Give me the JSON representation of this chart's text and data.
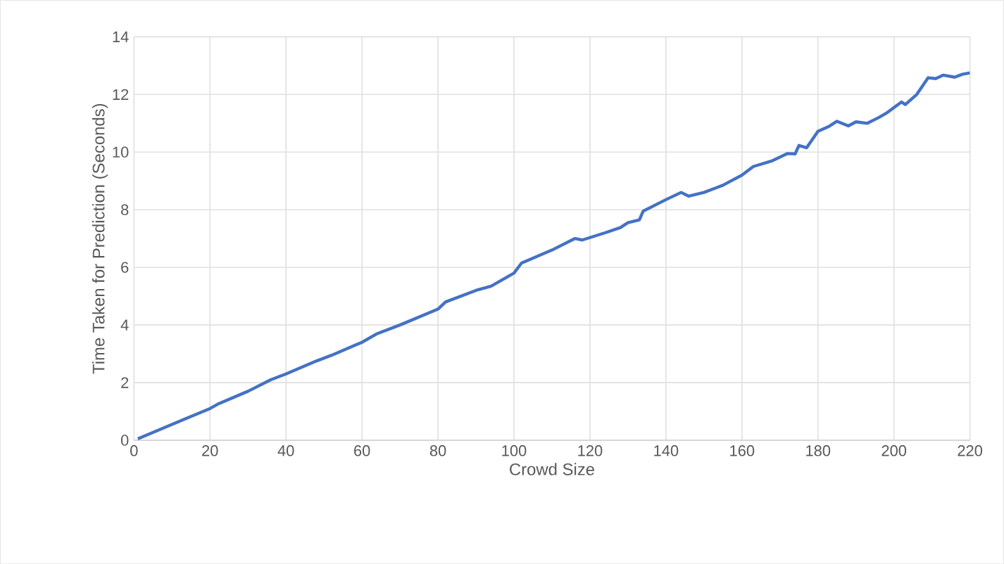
{
  "chart_data": {
    "type": "line",
    "xlabel": "Crowd Size",
    "ylabel": "Time Taken for Prediction (Seconds)",
    "x": [
      1,
      10,
      20,
      22,
      30,
      36,
      40,
      48,
      52,
      60,
      64,
      70,
      80,
      82,
      90,
      94,
      100,
      102,
      110,
      116,
      118,
      124,
      128,
      130,
      133,
      134,
      140,
      144,
      146,
      150,
      155,
      160,
      163,
      168,
      172,
      174,
      175,
      177,
      180,
      183,
      185,
      188,
      190,
      193,
      196,
      198,
      202,
      203,
      206,
      209,
      211,
      213,
      216,
      218,
      220
    ],
    "series": [
      {
        "color": "#4472c4",
        "values": [
          0.05,
          0.55,
          1.1,
          1.25,
          1.7,
          2.1,
          2.3,
          2.75,
          2.95,
          3.4,
          3.7,
          4.0,
          4.55,
          4.8,
          5.2,
          5.35,
          5.8,
          6.15,
          6.6,
          7.0,
          6.95,
          7.2,
          7.38,
          7.55,
          7.65,
          7.95,
          8.35,
          8.6,
          8.47,
          8.6,
          8.85,
          9.2,
          9.5,
          9.7,
          9.95,
          9.94,
          10.23,
          10.15,
          10.72,
          10.9,
          11.07,
          10.91,
          11.05,
          11.0,
          11.2,
          11.35,
          11.74,
          11.65,
          12.0,
          12.58,
          12.55,
          12.67,
          12.6,
          12.7,
          12.75
        ]
      }
    ],
    "xlim": [
      0,
      220
    ],
    "xticks": [
      0,
      20,
      40,
      60,
      80,
      100,
      120,
      140,
      160,
      180,
      200,
      220
    ],
    "ylim": [
      0,
      14
    ],
    "yticks": [
      0,
      2,
      4,
      6,
      8,
      10,
      12,
      14
    ],
    "grid": true,
    "line_style": "solid",
    "marker": "none"
  }
}
